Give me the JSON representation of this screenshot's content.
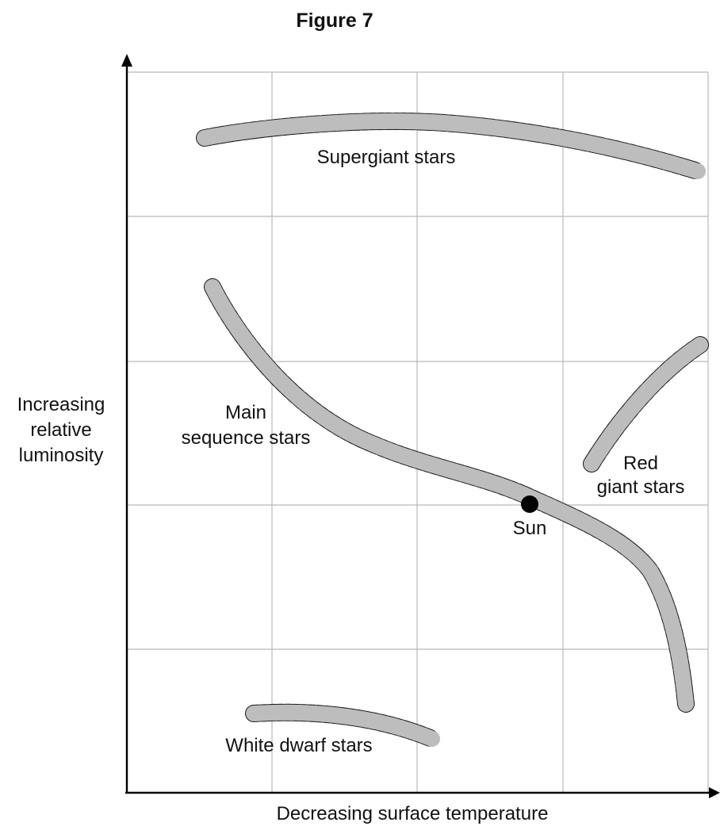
{
  "figure": {
    "title": "Figure 7",
    "y_axis_label": [
      "Increasing",
      "relative",
      "luminosity"
    ],
    "x_axis_label": "Decreasing surface temperature",
    "band_color": "#bdbdbd",
    "regions": {
      "supergiant": "Supergiant stars",
      "main_sequence": [
        "Main",
        "sequence stars"
      ],
      "red_giant": [
        "Red",
        "giant stars"
      ],
      "white_dwarf": "White dwarf stars"
    },
    "sun_label": "Sun"
  }
}
